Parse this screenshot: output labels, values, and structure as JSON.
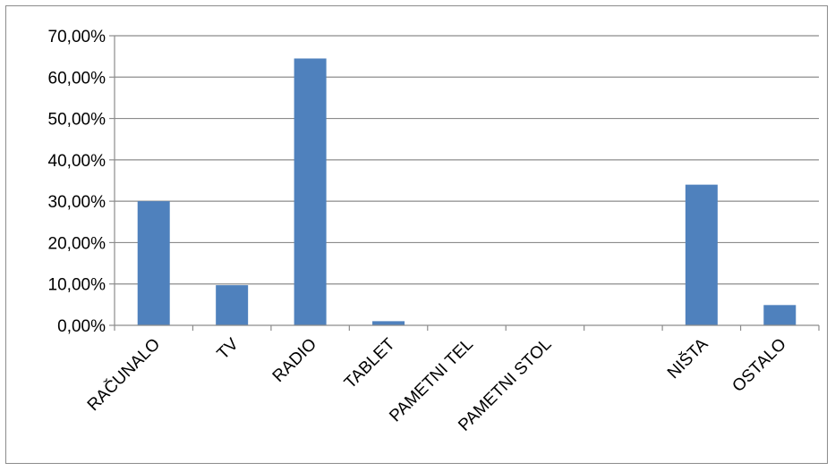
{
  "chart_data": {
    "type": "bar",
    "title": "",
    "xlabel": "",
    "ylabel": "",
    "categories": [
      "RAČUNALO",
      "TV",
      "RADIO",
      "TABLET",
      "PAMETNI TEL",
      "PAMETNI STOL",
      "",
      "NIŠTA",
      "OSTALO"
    ],
    "values": [
      30.0,
      9.7,
      64.5,
      1.0,
      0.0,
      0.0,
      0.0,
      34.0,
      4.9
    ],
    "ylim": [
      0,
      70
    ],
    "yticks": [
      "0,00%",
      "10,00%",
      "20,00%",
      "30,00%",
      "40,00%",
      "50,00%",
      "60,00%",
      "70,00%"
    ],
    "grid": true,
    "legend": "none",
    "colors": {
      "bar": "#4f81bd",
      "grid": "#8c8c8c",
      "axis": "#8c8c8c",
      "border": "#8c8c8c"
    }
  }
}
